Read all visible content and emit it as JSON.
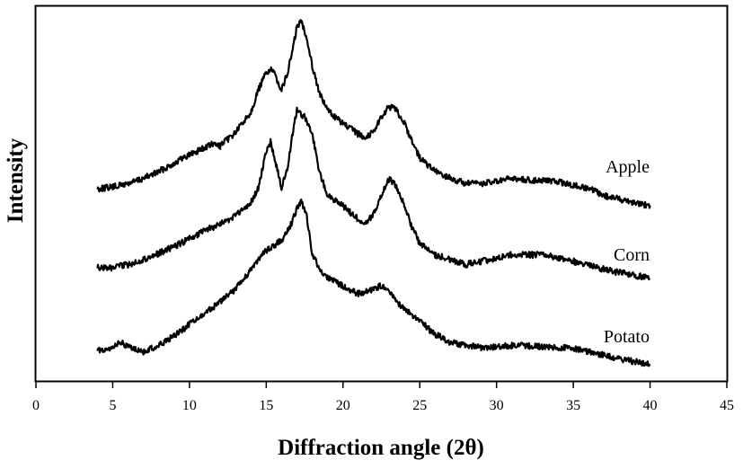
{
  "chart_data": {
    "type": "line",
    "xlabel": "Diffraction angle (2θ)",
    "ylabel": "Intensity",
    "xlim": [
      0,
      45
    ],
    "x_ticks": [
      0,
      5,
      10,
      15,
      20,
      25,
      30,
      35,
      40,
      45
    ],
    "x_tick_labels": [
      "0",
      "5",
      "10",
      "15",
      "20",
      "25",
      "30",
      "35",
      "40",
      "45"
    ],
    "y_ticks_shown": false,
    "grid": false,
    "legend": "none (series labelled inline at right end of curves)",
    "offset_stacked": true,
    "series": [
      {
        "name": "Apple",
        "x": [
          4,
          5,
          6,
          7,
          8,
          9,
          10,
          11,
          11.5,
          12,
          13,
          14,
          14.5,
          15,
          15.3,
          15.6,
          16,
          16.4,
          16.8,
          17,
          17.3,
          17.6,
          18,
          18.5,
          19,
          20,
          21,
          21.5,
          22,
          22.5,
          23,
          23.5,
          24,
          24.5,
          25,
          26,
          27,
          28,
          29,
          30,
          31,
          32,
          33,
          34,
          35,
          36,
          37,
          38,
          39,
          40
        ],
        "y": [
          0.0,
          0.01,
          0.03,
          0.06,
          0.1,
          0.15,
          0.2,
          0.24,
          0.26,
          0.25,
          0.33,
          0.45,
          0.58,
          0.68,
          0.7,
          0.66,
          0.58,
          0.68,
          0.85,
          0.95,
          0.98,
          0.9,
          0.72,
          0.55,
          0.46,
          0.38,
          0.32,
          0.3,
          0.34,
          0.42,
          0.48,
          0.46,
          0.38,
          0.28,
          0.18,
          0.1,
          0.06,
          0.03,
          0.03,
          0.04,
          0.06,
          0.05,
          0.05,
          0.04,
          0.02,
          0.0,
          -0.04,
          -0.06,
          -0.08,
          -0.1
        ]
      },
      {
        "name": "Corn",
        "x": [
          4,
          5,
          6,
          7,
          8,
          9,
          10,
          11,
          12,
          13,
          14,
          14.5,
          15,
          15.3,
          15.6,
          16,
          16.4,
          16.8,
          17,
          17.3,
          17.6,
          18,
          18.5,
          19,
          20,
          21,
          21.5,
          22,
          22.5,
          23,
          23.5,
          24,
          24.5,
          25,
          26,
          27,
          28,
          29,
          30,
          31,
          32,
          33,
          34,
          35,
          36,
          37,
          38,
          39,
          40
        ],
        "y": [
          0.0,
          0.0,
          0.02,
          0.05,
          0.09,
          0.13,
          0.18,
          0.23,
          0.27,
          0.32,
          0.4,
          0.5,
          0.72,
          0.78,
          0.65,
          0.5,
          0.62,
          0.88,
          0.98,
          0.95,
          0.92,
          0.82,
          0.58,
          0.45,
          0.38,
          0.3,
          0.28,
          0.33,
          0.45,
          0.55,
          0.5,
          0.38,
          0.25,
          0.15,
          0.08,
          0.05,
          0.02,
          0.04,
          0.06,
          0.08,
          0.08,
          0.08,
          0.06,
          0.04,
          0.02,
          -0.01,
          -0.03,
          -0.05,
          -0.06
        ]
      },
      {
        "name": "Potato",
        "x": [
          4,
          5,
          5.5,
          6,
          7,
          8,
          9,
          10,
          11,
          12,
          13,
          14,
          15,
          16,
          16.5,
          17,
          17.3,
          17.6,
          18,
          18.5,
          19,
          20,
          21,
          22,
          22.5,
          23,
          23.5,
          24,
          25,
          26,
          27,
          28,
          29,
          30,
          31,
          32,
          33,
          34,
          35,
          36,
          37,
          38,
          39,
          40
        ],
        "y": [
          0.0,
          0.02,
          0.05,
          0.02,
          -0.01,
          0.03,
          0.09,
          0.16,
          0.23,
          0.3,
          0.38,
          0.5,
          0.62,
          0.68,
          0.75,
          0.88,
          0.92,
          0.85,
          0.6,
          0.5,
          0.45,
          0.4,
          0.35,
          0.38,
          0.4,
          0.36,
          0.3,
          0.26,
          0.18,
          0.1,
          0.05,
          0.03,
          0.02,
          0.02,
          0.03,
          0.03,
          0.02,
          0.02,
          0.01,
          -0.01,
          -0.03,
          -0.05,
          -0.07,
          -0.08
        ]
      }
    ]
  }
}
